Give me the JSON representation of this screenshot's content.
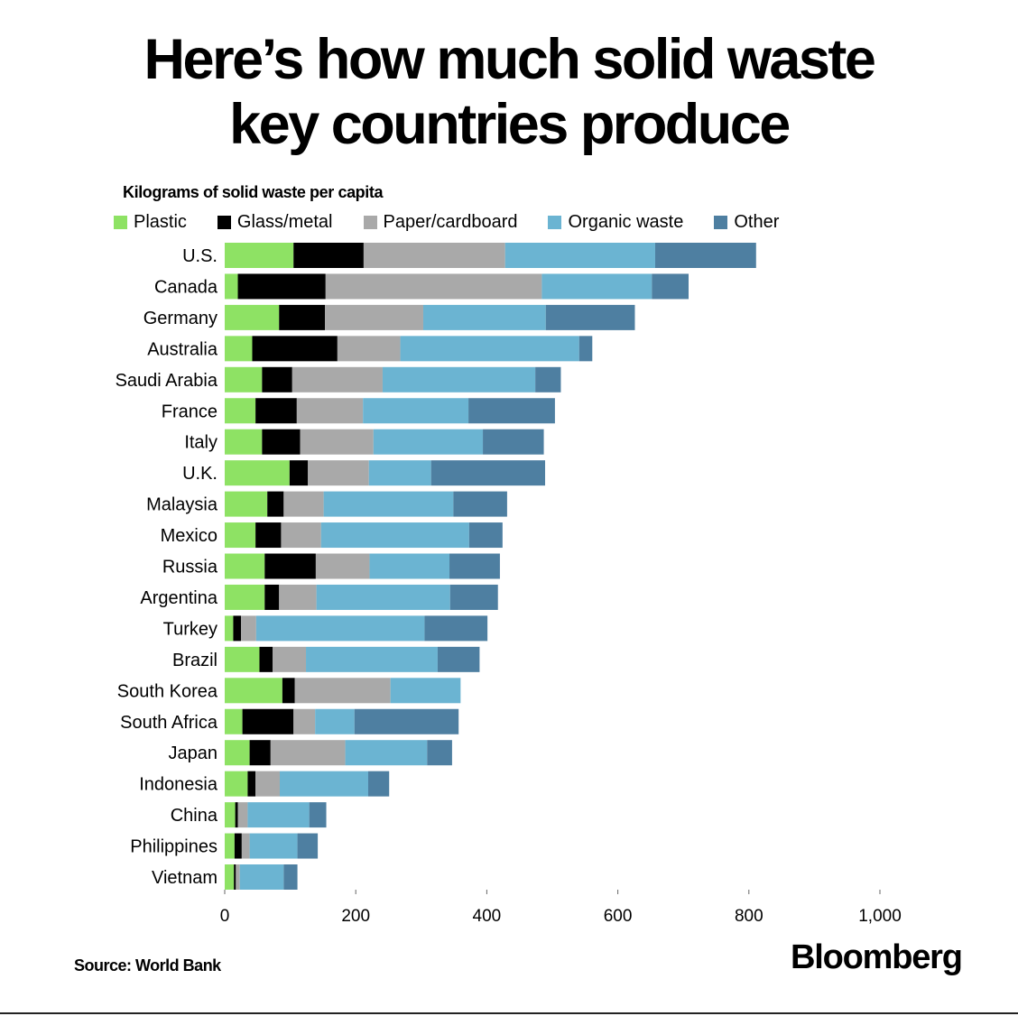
{
  "title_line1": "Here’s how much solid waste",
  "title_line2": "key countries produce",
  "source": "Source: World Bank",
  "brand": "Bloomberg",
  "chart_data": {
    "type": "bar",
    "orientation": "horizontal",
    "stacked": true,
    "subtitle": "Kilograms of solid waste per capita",
    "xlim": [
      0,
      1000
    ],
    "xticks": [
      0,
      200,
      400,
      600,
      800,
      1000
    ],
    "xtick_labels": [
      "0",
      "200",
      "400",
      "600",
      "800",
      "1,000"
    ],
    "grid": false,
    "legend_position": "top",
    "categories": [
      "U.S.",
      "Canada",
      "Germany",
      "Australia",
      "Saudi Arabia",
      "France",
      "Italy",
      "U.K.",
      "Malaysia",
      "Mexico",
      "Russia",
      "Argentina",
      "Turkey",
      "Brazil",
      "South Korea",
      "South Africa",
      "Japan",
      "Indonesia",
      "China",
      "Philippines",
      "Vietnam"
    ],
    "series": [
      {
        "name": "Plastic",
        "color": "#8ee264",
        "values": [
          105,
          20,
          83,
          42,
          57,
          47,
          57,
          99,
          65,
          47,
          61,
          61,
          13,
          53,
          88,
          27,
          38,
          35,
          16,
          15,
          14
        ]
      },
      {
        "name": "Glass/metal",
        "color": "#000000",
        "values": [
          107,
          134,
          70,
          130,
          46,
          63,
          58,
          28,
          25,
          39,
          78,
          22,
          12,
          20,
          19,
          78,
          32,
          12,
          4,
          11,
          3
        ]
      },
      {
        "name": "Paper/cardboard",
        "color": "#a9a9a9",
        "values": [
          216,
          330,
          150,
          96,
          138,
          101,
          112,
          93,
          61,
          61,
          82,
          57,
          23,
          51,
          146,
          33,
          114,
          37,
          15,
          12,
          6
        ]
      },
      {
        "name": "Organic waste",
        "color": "#6bb4d2",
        "values": [
          229,
          168,
          187,
          273,
          233,
          161,
          167,
          95,
          198,
          226,
          122,
          204,
          257,
          201,
          107,
          60,
          125,
          135,
          94,
          73,
          67
        ]
      },
      {
        "name": "Other",
        "color": "#4e7fa1",
        "values": [
          154,
          56,
          136,
          20,
          39,
          132,
          93,
          174,
          82,
          51,
          77,
          73,
          96,
          64,
          0,
          159,
          38,
          32,
          26,
          31,
          21
        ]
      }
    ]
  }
}
